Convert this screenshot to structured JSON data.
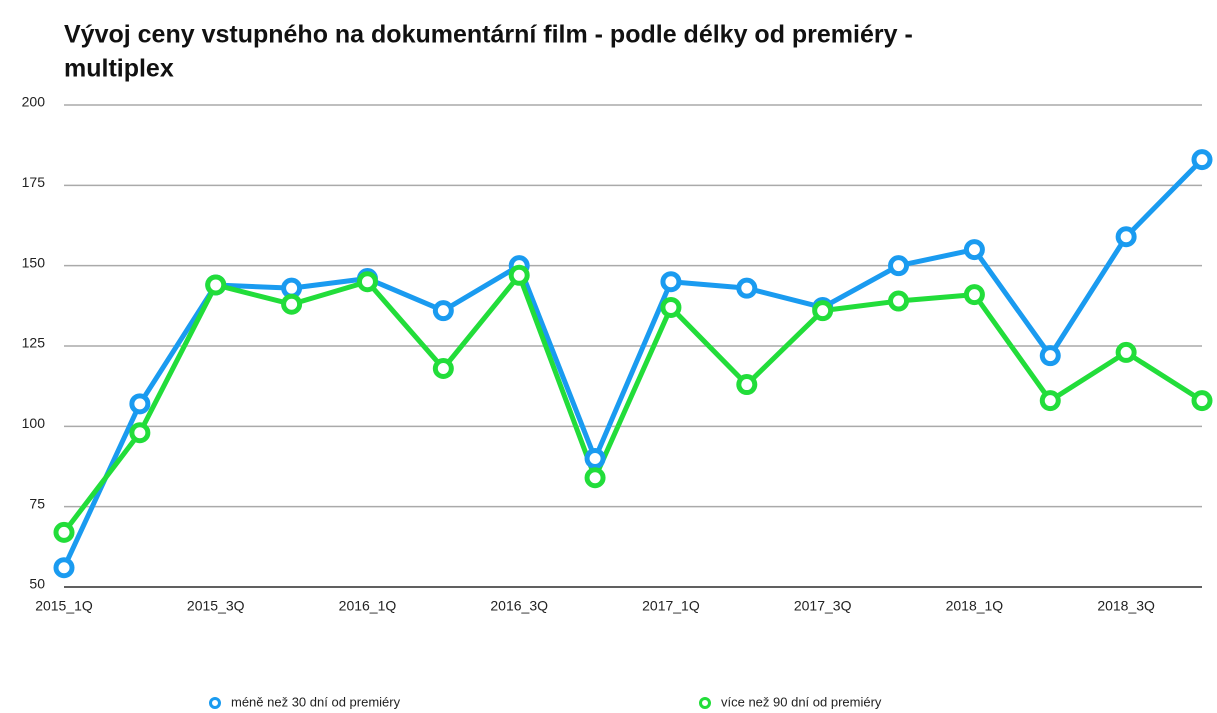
{
  "chart_data": {
    "type": "line",
    "title": [
      "Vývoj ceny vstupného na dokumentární film - podle délky od premiéry -",
      "multiplex"
    ],
    "categories": [
      "2015_1Q",
      null,
      "2015_3Q",
      null,
      "2016_1Q",
      null,
      "2016_3Q",
      null,
      "2017_1Q",
      null,
      "2017_3Q",
      null,
      "2018_1Q",
      null,
      "2018_3Q",
      null
    ],
    "series": [
      {
        "name": "méně než 30 dní od premiéry",
        "color": "#1a9bf0",
        "values": [
          56,
          107,
          144,
          143,
          146,
          136,
          150,
          90,
          145,
          143,
          137,
          150,
          155,
          122,
          159,
          183
        ]
      },
      {
        "name": "více než 90 dní od premiéry",
        "color": "#22dd3a",
        "values": [
          67,
          98,
          144,
          138,
          145,
          118,
          147,
          84,
          137,
          113,
          136,
          139,
          141,
          108,
          123,
          108
        ]
      }
    ],
    "ylim": [
      50,
      200
    ],
    "yticks": [
      50,
      75,
      100,
      125,
      150,
      175,
      200
    ],
    "grid": true,
    "legend": "bottom"
  }
}
